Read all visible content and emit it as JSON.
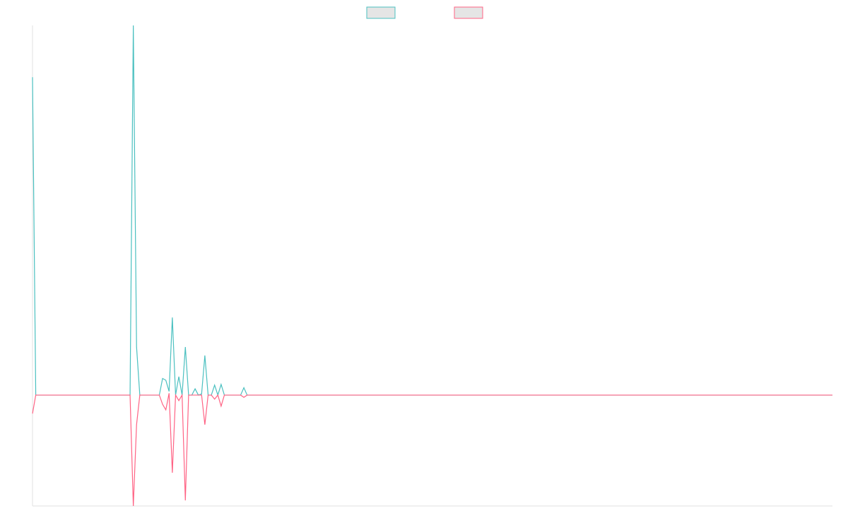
{
  "chart_data": {
    "type": "line",
    "ylim": [
      -0.3,
      1.0
    ],
    "legend": "top",
    "series": [
      {
        "color": "#4bc0c0",
        "values": [
          0.86,
          0,
          0,
          0,
          0,
          0,
          0,
          0,
          0,
          0,
          0,
          0,
          0,
          0,
          0,
          0,
          0,
          0,
          0,
          0,
          0,
          0,
          0,
          0,
          0,
          0,
          0,
          0,
          0,
          0,
          0,
          1.0,
          0.13,
          0,
          0,
          0,
          0,
          0,
          0,
          0,
          0.045,
          0.04,
          0.01,
          0.21,
          0,
          0.05,
          0,
          0.13,
          0,
          0,
          0.017,
          0,
          0.003,
          0.107,
          0,
          0,
          0.027,
          0,
          0.029,
          0,
          0,
          0,
          0,
          0,
          0,
          0.02,
          0,
          0,
          0,
          0,
          0,
          0,
          0,
          0,
          0,
          0,
          0,
          0,
          0,
          0,
          0,
          0,
          0,
          0,
          0,
          0,
          0,
          0,
          0,
          0,
          0,
          0,
          0,
          0,
          0,
          0,
          0,
          0,
          0,
          0,
          0,
          0,
          0,
          0,
          0,
          0,
          0,
          0,
          0,
          0,
          0,
          0,
          0,
          0,
          0,
          0,
          0,
          0,
          0,
          0,
          0,
          0,
          0,
          0,
          0,
          0,
          0,
          0,
          0,
          0,
          0,
          0,
          0,
          0,
          0,
          0,
          0,
          0,
          0,
          0,
          0,
          0,
          0,
          0,
          0,
          0,
          0,
          0,
          0,
          0,
          0,
          0,
          0,
          0,
          0,
          0,
          0,
          0,
          0,
          0,
          0,
          0,
          0,
          0,
          0,
          0,
          0,
          0,
          0,
          0,
          0,
          0,
          0,
          0,
          0,
          0,
          0,
          0,
          0,
          0,
          0,
          0,
          0,
          0,
          0,
          0,
          0,
          0,
          0,
          0,
          0,
          0,
          0,
          0,
          0,
          0,
          0,
          0,
          0,
          0,
          0,
          0,
          0,
          0,
          0,
          0,
          0,
          0,
          0,
          0,
          0,
          0,
          0,
          0,
          0,
          0,
          0,
          0,
          0,
          0,
          0,
          0,
          0,
          0,
          0,
          0,
          0,
          0,
          0,
          0,
          0,
          0,
          0,
          0,
          0,
          0,
          0,
          0,
          0,
          0,
          0,
          0,
          0,
          0,
          0,
          0,
          0
        ]
      },
      {
        "color": "#ff6384",
        "values": [
          -0.05,
          0,
          0,
          0,
          0,
          0,
          0,
          0,
          0,
          0,
          0,
          0,
          0,
          0,
          0,
          0,
          0,
          0,
          0,
          0,
          0,
          0,
          0,
          0,
          0,
          0,
          0,
          0,
          0,
          0,
          0,
          -0.3,
          -0.08,
          0,
          0,
          0,
          0,
          0,
          0,
          0,
          -0.025,
          -0.04,
          0.005,
          -0.21,
          0,
          -0.015,
          0,
          -0.285,
          0,
          0,
          0,
          0,
          0,
          -0.08,
          0,
          0,
          -0.011,
          0,
          -0.03,
          0,
          0,
          0,
          0,
          0,
          0,
          -0.006,
          0,
          0,
          0,
          0,
          0,
          0,
          0,
          0,
          0,
          0,
          0,
          0,
          0,
          0,
          0,
          0,
          0,
          0,
          0,
          0,
          0,
          0,
          0,
          0,
          0,
          0,
          0,
          0,
          0,
          0,
          0,
          0,
          0,
          0,
          0,
          0,
          0,
          0,
          0,
          0,
          0,
          0,
          0,
          0,
          0,
          0,
          0,
          0,
          0,
          0,
          0,
          0,
          0,
          0,
          0,
          0,
          0,
          0,
          0,
          0,
          0,
          0,
          0,
          0,
          0,
          0,
          0,
          0,
          0,
          0,
          0,
          0,
          0,
          0,
          0,
          0,
          0,
          0,
          0,
          0,
          0,
          0,
          0,
          0,
          0,
          0,
          0,
          0,
          0,
          0,
          0,
          0,
          0,
          0,
          0,
          0,
          0,
          0,
          0,
          0,
          0,
          0,
          0,
          0,
          0,
          0,
          0,
          0,
          0,
          0,
          0,
          0,
          0,
          0,
          0,
          0,
          0,
          0,
          0,
          0,
          0,
          0,
          0,
          0,
          0,
          0,
          0,
          0,
          0,
          0,
          0,
          0,
          0,
          0,
          0,
          0,
          0,
          0,
          0,
          0,
          0,
          0,
          0,
          0,
          0,
          0,
          0,
          0,
          0,
          0,
          0,
          0,
          0,
          0,
          0,
          0,
          0,
          0,
          0,
          0,
          0,
          0,
          0,
          0,
          0,
          0,
          0,
          0,
          0,
          0,
          0,
          0,
          0,
          0,
          0,
          0,
          0,
          0,
          0,
          0,
          0
        ]
      }
    ]
  }
}
